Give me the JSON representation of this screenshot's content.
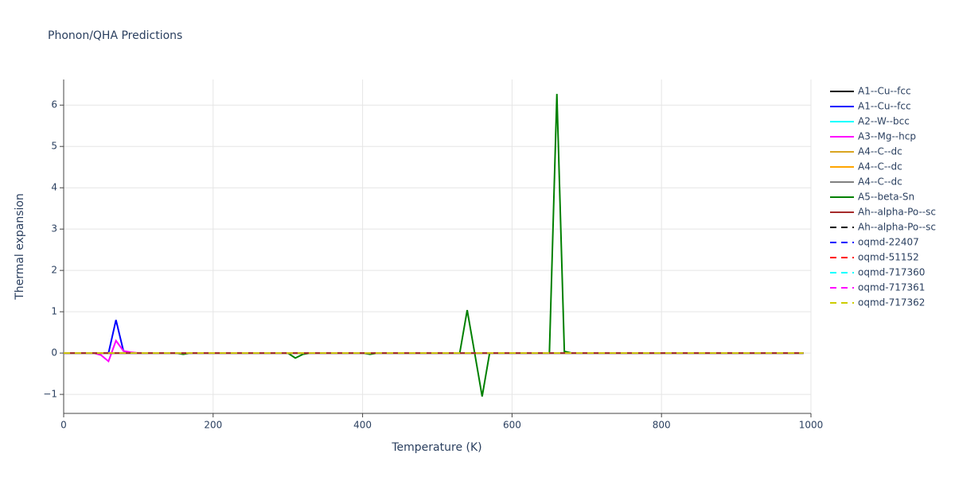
{
  "chart_data": {
    "type": "line",
    "title": "Phonon/QHA Predictions",
    "x_label": "Temperature (K)",
    "y_label": "Thermal expansion",
    "xlim": [
      0,
      1000
    ],
    "xticks": [
      0,
      200,
      400,
      600,
      800,
      1000
    ],
    "ylim": [
      -1.46,
      6.62
    ],
    "yticks": [
      {
        "value": -1,
        "label": "−1"
      },
      0,
      1,
      2,
      3,
      4,
      5,
      6
    ],
    "grid": true,
    "legend": "right",
    "series": [
      {
        "name": "A1--Cu--fcc",
        "color": "#000000",
        "dash": false,
        "x": [
          0,
          990
        ],
        "values": [
          0,
          0
        ]
      },
      {
        "name": "A1--Cu--fcc",
        "color": "#0000ff",
        "dash": false,
        "x": [
          0,
          50,
          60,
          70,
          80,
          90,
          100,
          990
        ],
        "values": [
          0,
          0,
          0,
          0.8,
          0.05,
          0.01,
          0,
          0
        ]
      },
      {
        "name": "A2--W--bcc",
        "color": "#00ffff",
        "dash": false,
        "x": [
          0,
          990
        ],
        "values": [
          0,
          0
        ]
      },
      {
        "name": "A3--Mg--hcp",
        "color": "#ff00ff",
        "dash": false,
        "x": [
          0,
          40,
          50,
          60,
          70,
          80,
          90,
          100,
          990
        ],
        "values": [
          0,
          0,
          -0.05,
          -0.2,
          0.3,
          0.05,
          0.02,
          0,
          0
        ]
      },
      {
        "name": "A4--C--dc",
        "color": "#daa520",
        "dash": false,
        "x": [
          0,
          990
        ],
        "values": [
          0,
          0
        ]
      },
      {
        "name": "A4--C--dc",
        "color": "#ffa500",
        "dash": false,
        "x": [
          0,
          990
        ],
        "values": [
          0,
          0
        ]
      },
      {
        "name": "A4--C--dc",
        "color": "#808080",
        "dash": false,
        "x": [
          0,
          990
        ],
        "values": [
          0,
          0
        ]
      },
      {
        "name": "A5--beta-Sn",
        "color": "#008000",
        "dash": false,
        "x": [
          0,
          150,
          160,
          170,
          300,
          310,
          320,
          330,
          400,
          410,
          420,
          530,
          540,
          550,
          560,
          570,
          650,
          660,
          670,
          680,
          990
        ],
        "values": [
          0,
          0,
          -0.03,
          0,
          0,
          -0.12,
          -0.03,
          0,
          0,
          -0.03,
          0,
          0,
          1.04,
          0,
          -1.05,
          0,
          0,
          6.27,
          0.04,
          0,
          0
        ]
      },
      {
        "name": "Ah--alpha-Po--sc",
        "color": "#a52a2a",
        "dash": false,
        "x": [
          0,
          990
        ],
        "values": [
          0,
          0
        ]
      },
      {
        "name": "Ah--alpha-Po--sc",
        "color": "#000000",
        "dash": true,
        "x": [
          0,
          990
        ],
        "values": [
          0,
          0
        ]
      },
      {
        "name": "oqmd-22407",
        "color": "#0000ff",
        "dash": true,
        "x": [
          0,
          990
        ],
        "values": [
          0,
          0
        ]
      },
      {
        "name": "oqmd-51152",
        "color": "#ff0000",
        "dash": true,
        "x": [
          0,
          990
        ],
        "values": [
          0,
          0
        ]
      },
      {
        "name": "oqmd-717360",
        "color": "#00ffff",
        "dash": true,
        "x": [
          0,
          990
        ],
        "values": [
          0,
          0
        ]
      },
      {
        "name": "oqmd-717361",
        "color": "#ff00ff",
        "dash": true,
        "x": [
          0,
          990
        ],
        "values": [
          0,
          0
        ]
      },
      {
        "name": "oqmd-717362",
        "color": "#cccc00",
        "dash": true,
        "x": [
          0,
          990
        ],
        "values": [
          0,
          0
        ]
      }
    ]
  }
}
